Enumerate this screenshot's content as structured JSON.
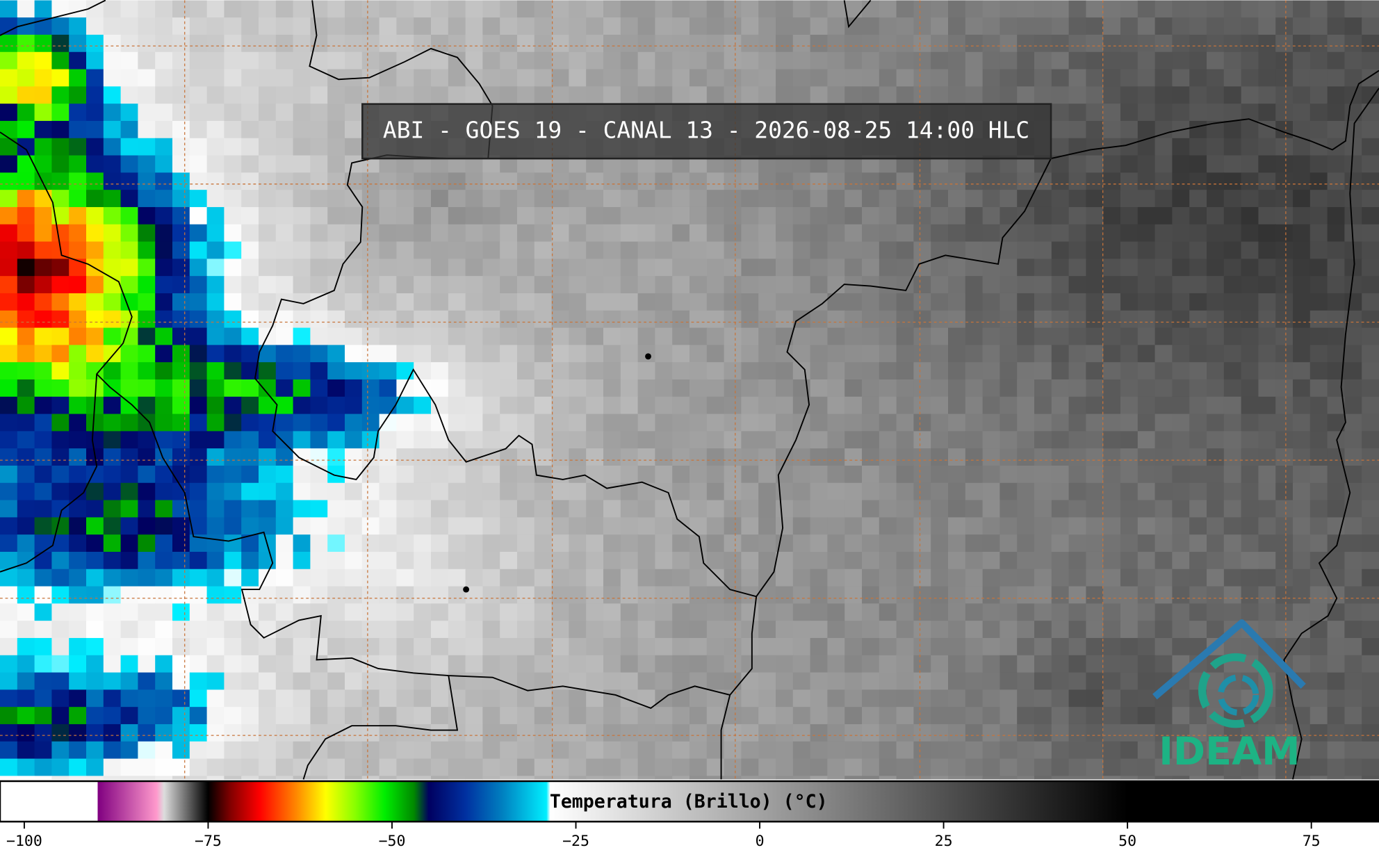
{
  "title": "ABI - GOES 19 - CANAL 13 - 2026-08-25 14:00 HLC",
  "colorbar": {
    "label": "Temperatura (Brillo) (°C)",
    "range": [
      -103.3,
      84.2
    ],
    "ticks": [
      {
        "value": -100,
        "label": "−100"
      },
      {
        "value": -75,
        "label": "−75"
      },
      {
        "value": -50,
        "label": "−50"
      },
      {
        "value": -25,
        "label": "−25"
      },
      0,
      25,
      50,
      75
    ],
    "colormap": [
      {
        "value": -103.3,
        "color": "#ffffff"
      },
      {
        "value": -90,
        "color": "#ffffff"
      },
      {
        "value": -90,
        "color": "#800080"
      },
      {
        "value": -82,
        "color": "#ff99cc"
      },
      {
        "value": -81,
        "color": "#dddddd"
      },
      {
        "value": -75.5,
        "color": "#111111"
      },
      {
        "value": -75,
        "color": "#000000"
      },
      {
        "value": -72,
        "color": "#800000"
      },
      {
        "value": -68,
        "color": "#ff0000"
      },
      {
        "value": -63,
        "color": "#ff8800"
      },
      {
        "value": -59,
        "color": "#ffff00"
      },
      {
        "value": -55,
        "color": "#88ff00"
      },
      {
        "value": -51,
        "color": "#00ee00"
      },
      {
        "value": -47,
        "color": "#008800"
      },
      {
        "value": -45,
        "color": "#000060"
      },
      {
        "value": -40,
        "color": "#0030a0"
      },
      {
        "value": -35,
        "color": "#0080c0"
      },
      {
        "value": -29,
        "color": "#00eeff"
      },
      {
        "value": -28.5,
        "color": "#ffffff"
      },
      {
        "value": 50,
        "color": "#000000"
      },
      {
        "value": 84.2,
        "color": "#000000"
      }
    ]
  },
  "logo": "IDEAM"
}
